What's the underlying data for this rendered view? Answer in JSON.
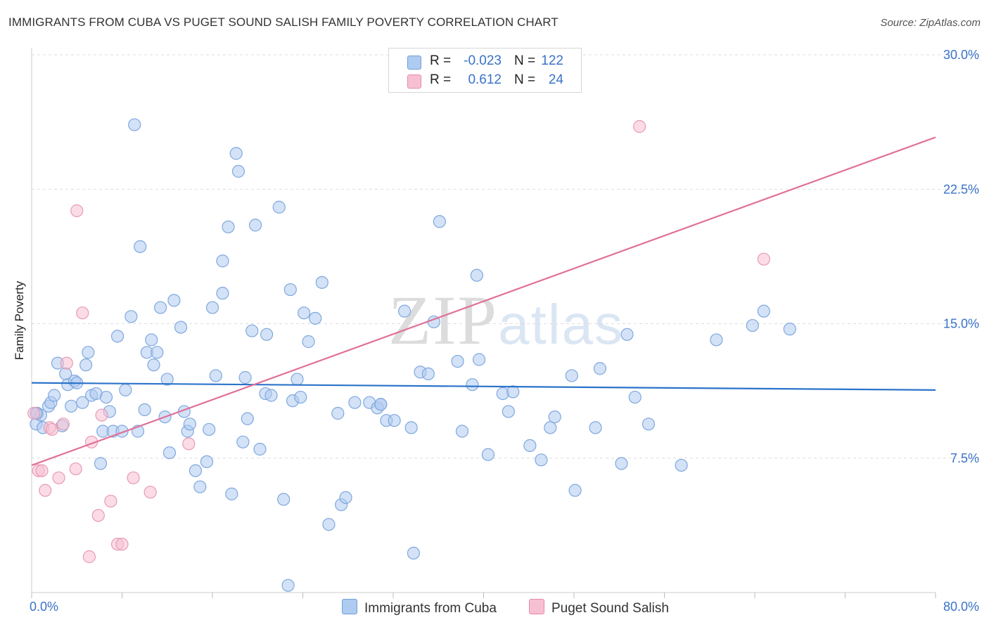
{
  "header": {
    "title": "IMMIGRANTS FROM CUBA VS PUGET SOUND SALISH FAMILY POVERTY CORRELATION CHART",
    "source": "Source: ZipAtlas.com"
  },
  "watermark": {
    "zip": "ZIP",
    "atlas": "atlas"
  },
  "legend": {
    "rows": [
      {
        "r_label": "R =",
        "r_value": "-0.023",
        "n_label": "N =",
        "n_value": "122",
        "color": "#aecbf0",
        "border": "#6f9fdb"
      },
      {
        "r_label": "R =",
        "r_value": "0.612",
        "n_label": "N =",
        "n_value": "24",
        "color": "#f7c0d2",
        "border": "#e58aa8"
      }
    ]
  },
  "colors": {
    "blue_fill": "#aecbf0",
    "blue_stroke": "#7fa8de",
    "blue_line": "#2b73c9",
    "pink_fill": "#f7c0d2",
    "pink_stroke": "#e89ab4",
    "pink_line": "#e0719a",
    "grid": "#dddddd",
    "tick_label": "#3a72c8"
  },
  "chart_data": {
    "type": "scatter",
    "title": "IMMIGRANTS FROM CUBA VS PUGET SOUND SALISH FAMILY POVERTY CORRELATION CHART",
    "xlabel": "",
    "ylabel": "Family Poverty",
    "xlim": [
      0,
      80
    ],
    "ylim": [
      0,
      30
    ],
    "x_tick_labels": [
      "0.0%",
      "80.0%"
    ],
    "y_ticks": [
      7.5,
      15.0,
      22.5,
      30.0
    ],
    "y_tick_labels": [
      "7.5%",
      "15.0%",
      "22.5%",
      "30.0%"
    ],
    "grid": true,
    "legend_position": "top-center",
    "series": [
      {
        "name": "Immigrants from Cuba",
        "r": -0.023,
        "n": 122,
        "trend": {
          "x": [
            0,
            80
          ],
          "y": [
            11.7,
            11.3
          ]
        },
        "points": [
          [
            0.4,
            9.4
          ],
          [
            0.5,
            10.0
          ],
          [
            0.8,
            9.9
          ],
          [
            1.0,
            9.2
          ],
          [
            1.5,
            10.4
          ],
          [
            1.7,
            10.6
          ],
          [
            2.0,
            11.0
          ],
          [
            2.3,
            12.8
          ],
          [
            2.7,
            9.3
          ],
          [
            3.0,
            12.2
          ],
          [
            3.2,
            11.6
          ],
          [
            3.5,
            10.4
          ],
          [
            3.8,
            11.8
          ],
          [
            4.0,
            11.7
          ],
          [
            4.5,
            10.6
          ],
          [
            4.8,
            12.7
          ],
          [
            5.0,
            13.4
          ],
          [
            5.3,
            11.0
          ],
          [
            5.7,
            11.1
          ],
          [
            6.1,
            7.2
          ],
          [
            6.3,
            9.0
          ],
          [
            6.6,
            10.9
          ],
          [
            6.9,
            10.1
          ],
          [
            7.2,
            9.0
          ],
          [
            7.6,
            14.3
          ],
          [
            8.0,
            9.0
          ],
          [
            8.3,
            11.3
          ],
          [
            8.8,
            15.4
          ],
          [
            9.1,
            26.1
          ],
          [
            9.4,
            9.0
          ],
          [
            9.6,
            19.3
          ],
          [
            10.0,
            10.2
          ],
          [
            10.2,
            13.4
          ],
          [
            10.6,
            14.1
          ],
          [
            10.8,
            12.7
          ],
          [
            11.1,
            13.4
          ],
          [
            11.4,
            15.9
          ],
          [
            11.8,
            9.8
          ],
          [
            12.0,
            11.9
          ],
          [
            12.2,
            7.8
          ],
          [
            12.6,
            16.3
          ],
          [
            13.2,
            14.8
          ],
          [
            13.5,
            10.1
          ],
          [
            13.8,
            9.0
          ],
          [
            14.0,
            9.4
          ],
          [
            14.5,
            6.8
          ],
          [
            14.9,
            5.9
          ],
          [
            15.5,
            7.3
          ],
          [
            15.7,
            9.1
          ],
          [
            16.0,
            15.9
          ],
          [
            16.3,
            12.1
          ],
          [
            16.9,
            18.5
          ],
          [
            16.9,
            16.7
          ],
          [
            17.4,
            20.4
          ],
          [
            17.7,
            5.5
          ],
          [
            18.1,
            24.5
          ],
          [
            18.3,
            23.5
          ],
          [
            18.7,
            8.4
          ],
          [
            18.9,
            12.0
          ],
          [
            19.1,
            9.7
          ],
          [
            19.5,
            14.6
          ],
          [
            19.8,
            20.5
          ],
          [
            20.2,
            8.0
          ],
          [
            20.7,
            11.1
          ],
          [
            20.8,
            14.4
          ],
          [
            21.2,
            11.0
          ],
          [
            21.9,
            21.5
          ],
          [
            22.3,
            5.2
          ],
          [
            22.7,
            0.4
          ],
          [
            22.9,
            16.9
          ],
          [
            23.1,
            10.7
          ],
          [
            23.5,
            11.9
          ],
          [
            23.8,
            10.9
          ],
          [
            24.1,
            15.6
          ],
          [
            24.5,
            14.0
          ],
          [
            25.1,
            15.3
          ],
          [
            25.7,
            17.3
          ],
          [
            26.3,
            3.8
          ],
          [
            27.1,
            10.0
          ],
          [
            27.4,
            4.9
          ],
          [
            27.8,
            5.3
          ],
          [
            28.6,
            10.6
          ],
          [
            29.9,
            10.6
          ],
          [
            30.6,
            10.3
          ],
          [
            30.9,
            10.5
          ],
          [
            30.9,
            10.5
          ],
          [
            31.4,
            9.6
          ],
          [
            32.1,
            9.6
          ],
          [
            33.0,
            15.7
          ],
          [
            33.6,
            9.2
          ],
          [
            33.8,
            2.2
          ],
          [
            34.4,
            12.3
          ],
          [
            35.1,
            12.2
          ],
          [
            35.6,
            15.1
          ],
          [
            36.1,
            20.7
          ],
          [
            37.7,
            12.9
          ],
          [
            38.1,
            9.0
          ],
          [
            39.0,
            11.6
          ],
          [
            39.4,
            17.7
          ],
          [
            39.6,
            13.0
          ],
          [
            40.4,
            7.7
          ],
          [
            41.7,
            11.1
          ],
          [
            42.2,
            10.1
          ],
          [
            42.6,
            11.2
          ],
          [
            44.1,
            8.2
          ],
          [
            45.1,
            7.4
          ],
          [
            45.9,
            9.2
          ],
          [
            46.3,
            9.8
          ],
          [
            47.8,
            12.1
          ],
          [
            48.1,
            5.7
          ],
          [
            49.9,
            9.2
          ],
          [
            50.3,
            12.5
          ],
          [
            52.2,
            7.2
          ],
          [
            52.7,
            14.4
          ],
          [
            53.4,
            10.9
          ],
          [
            54.6,
            9.4
          ],
          [
            57.5,
            7.1
          ],
          [
            60.6,
            14.1
          ],
          [
            63.8,
            14.9
          ],
          [
            64.8,
            15.7
          ],
          [
            67.1,
            14.7
          ],
          [
            0.4,
            10.0
          ]
        ]
      },
      {
        "name": "Puget Sound Salish",
        "r": 0.612,
        "n": 24,
        "trend": {
          "x": [
            0,
            80
          ],
          "y": [
            7.1,
            25.4
          ]
        },
        "points": [
          [
            0.2,
            10.0
          ],
          [
            0.6,
            6.8
          ],
          [
            0.9,
            6.8
          ],
          [
            1.2,
            5.7
          ],
          [
            1.6,
            9.2
          ],
          [
            1.8,
            9.1
          ],
          [
            2.4,
            6.4
          ],
          [
            2.8,
            9.4
          ],
          [
            3.1,
            12.8
          ],
          [
            3.9,
            6.9
          ],
          [
            4.0,
            21.3
          ],
          [
            4.5,
            15.6
          ],
          [
            5.1,
            2.0
          ],
          [
            5.3,
            8.4
          ],
          [
            5.9,
            4.3
          ],
          [
            6.2,
            9.9
          ],
          [
            7.0,
            5.1
          ],
          [
            7.6,
            2.7
          ],
          [
            8.0,
            2.7
          ],
          [
            9.0,
            6.4
          ],
          [
            10.5,
            5.6
          ],
          [
            13.9,
            8.3
          ],
          [
            53.8,
            26.0
          ],
          [
            64.8,
            18.6
          ]
        ]
      }
    ]
  },
  "axes": {
    "x_left_label": "0.0%",
    "x_right_label": "80.0%"
  }
}
